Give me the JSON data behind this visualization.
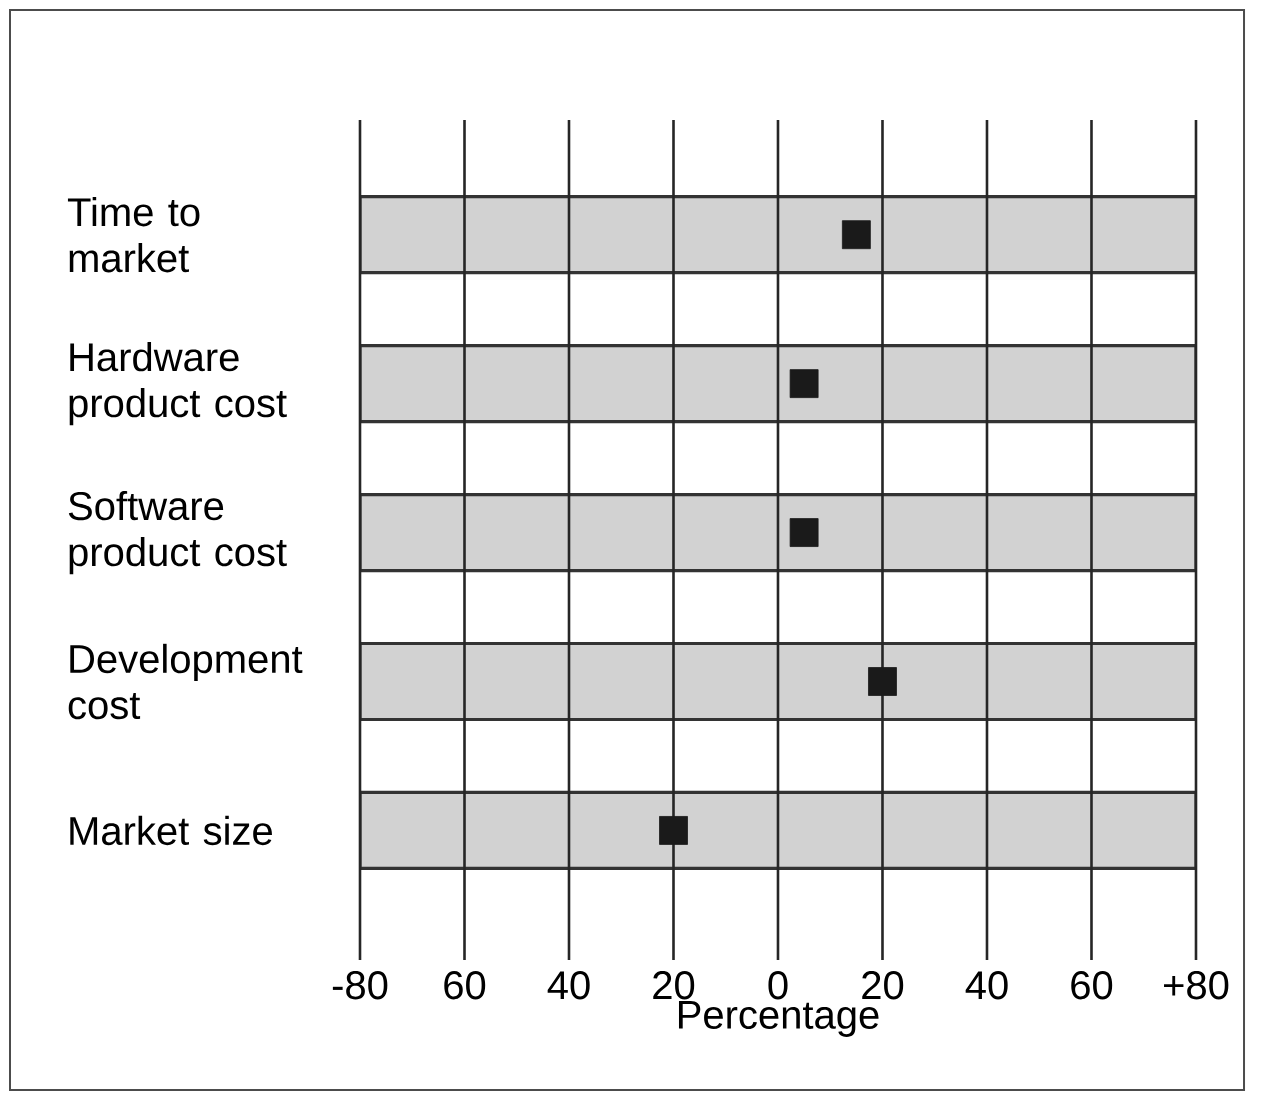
{
  "chart_data": {
    "type": "bar",
    "orientation": "horizontal",
    "categories": [
      "Time to market",
      "Hardware product cost",
      "Software product cost",
      "Development cost",
      "Market size"
    ],
    "xlabel": "Percentage",
    "xlim": [
      -80,
      80
    ],
    "xticks": [
      -80,
      {
        "value": -60,
        "label": "60"
      },
      {
        "value": -40,
        "label": "40"
      },
      {
        "value": -20,
        "label": "20"
      },
      0,
      20,
      40,
      60,
      {
        "value": 80,
        "label": "+80"
      }
    ],
    "grid": "x",
    "series": [
      {
        "color": "#d2d2d2",
        "base": [
          -80,
          -80,
          -80,
          -80,
          -80
        ],
        "values": [
          160,
          160,
          160,
          160,
          160
        ]
      },
      {
        "type": "scatter",
        "color": "#1a1a1a",
        "marker": "square",
        "values": [
          15,
          5,
          5,
          20,
          -20
        ]
      }
    ]
  }
}
